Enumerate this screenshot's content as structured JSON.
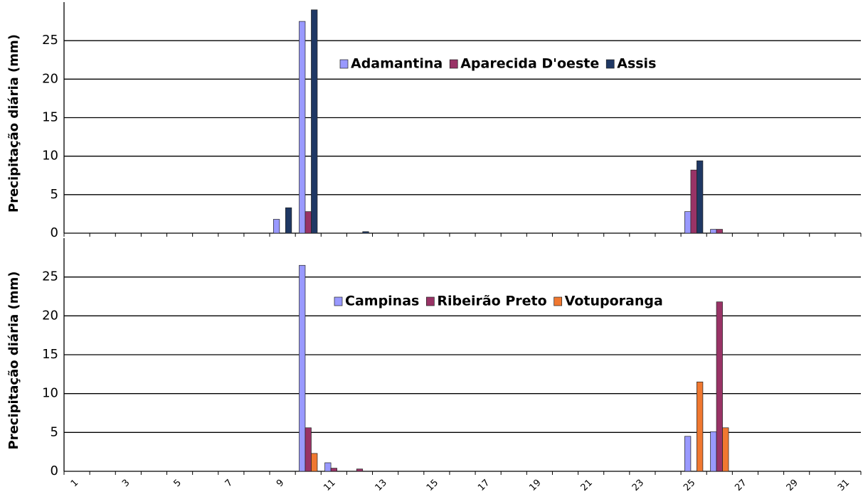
{
  "chart_data": [
    {
      "type": "bar",
      "y_label": "Precipitação diária (mm)",
      "categories": [
        null,
        null,
        null,
        null,
        null,
        null,
        null,
        null,
        null,
        null,
        null,
        null,
        null,
        null,
        null,
        null,
        null,
        null,
        null,
        null,
        null,
        null,
        null,
        null,
        null,
        null,
        null,
        null,
        null,
        null,
        null
      ],
      "series": [
        {
          "name": "Adamantina",
          "color": "#9999ff",
          "values": [
            0,
            0,
            0,
            0,
            0,
            0,
            0,
            0,
            1.8,
            27.5,
            0,
            0,
            0,
            0,
            0,
            0,
            0,
            0,
            0,
            0,
            0,
            0,
            0,
            0,
            2.8,
            0.5,
            0,
            0,
            0,
            0,
            0
          ]
        },
        {
          "name": "Aparecida D'oeste",
          "color": "#993366",
          "values": [
            0,
            0,
            0,
            0,
            0,
            0,
            0,
            0,
            0,
            2.8,
            0,
            0,
            0,
            0,
            0,
            0,
            0,
            0,
            0,
            0,
            0,
            0,
            0,
            0,
            8.2,
            0.5,
            0,
            0,
            0,
            0,
            0
          ]
        },
        {
          "name": "Assis",
          "color": "#1f3864",
          "values": [
            0,
            0,
            0,
            0,
            0,
            0,
            0,
            0,
            3.3,
            29,
            0,
            0.2,
            0,
            0,
            0,
            0,
            0,
            0,
            0,
            0,
            0,
            0,
            0,
            0,
            9.4,
            0,
            0,
            0,
            0,
            0,
            0
          ]
        }
      ],
      "ylim": [
        0,
        30
      ],
      "yticks": [
        0,
        5,
        10,
        15,
        20,
        25
      ],
      "grid": true
    },
    {
      "type": "bar",
      "y_label": "Precipitação diária (mm)",
      "categories": [
        "1",
        null,
        "3",
        null,
        "5",
        null,
        "7",
        null,
        "9",
        null,
        "11",
        null,
        "13",
        null,
        "15",
        null,
        "17",
        null,
        "19",
        null,
        "21",
        null,
        "23",
        null,
        "25",
        null,
        "27",
        null,
        "29",
        null,
        "31"
      ],
      "series": [
        {
          "name": "Campinas",
          "color": "#9999ff",
          "values": [
            0,
            0,
            0,
            0,
            0,
            0,
            0,
            0,
            0,
            26.5,
            1.1,
            0,
            0,
            0,
            0,
            0,
            0,
            0,
            0,
            0,
            0,
            0,
            0,
            0,
            4.5,
            5.1,
            0,
            0,
            0,
            0,
            0
          ]
        },
        {
          "name": "Ribeirão Preto",
          "color": "#993366",
          "values": [
            0,
            0,
            0,
            0,
            0,
            0,
            0,
            0,
            0,
            5.6,
            0.4,
            0.3,
            0,
            0,
            0,
            0,
            0,
            0,
            0,
            0,
            0,
            0,
            0,
            0,
            0,
            21.8,
            0,
            0,
            0,
            0,
            0
          ]
        },
        {
          "name": "Votuporanga",
          "color": "#f07830",
          "values": [
            0,
            0,
            0,
            0,
            0,
            0,
            0,
            0,
            0,
            2.3,
            0,
            0,
            0,
            0,
            0,
            0,
            0,
            0,
            0,
            0,
            0,
            0,
            0,
            0,
            11.5,
            5.6,
            0,
            0,
            0,
            0,
            0
          ]
        }
      ],
      "ylim": [
        0,
        30
      ],
      "yticks": [
        0,
        5,
        10,
        15,
        20,
        25
      ],
      "grid": true
    }
  ]
}
